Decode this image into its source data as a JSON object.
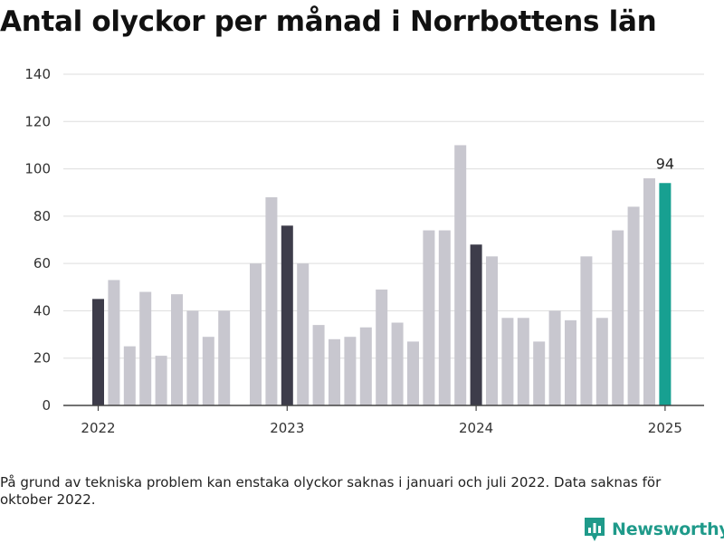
{
  "chart_data": {
    "type": "bar",
    "title": "Antal olyckor per månad i Norrbottens län",
    "ylim": [
      0,
      140
    ],
    "y_ticks": [
      0,
      20,
      40,
      60,
      80,
      100,
      120,
      140
    ],
    "x_ticks": [
      {
        "label": "2022",
        "period": "2022-01"
      },
      {
        "label": "2023",
        "period": "2023-01"
      },
      {
        "label": "2024",
        "period": "2024-01"
      },
      {
        "label": "2025",
        "period": "2025-01"
      }
    ],
    "grid": true,
    "legend": "none",
    "colors": {
      "regular": "#c8c7cf",
      "january": "#3d3c4a",
      "latest": "#17a091",
      "grid": "#dddddd",
      "axis": "#444444"
    },
    "bars": [
      {
        "period": "2022-01",
        "value": 45,
        "highlight": "january"
      },
      {
        "period": "2022-02",
        "value": 53,
        "highlight": "regular"
      },
      {
        "period": "2022-03",
        "value": 25,
        "highlight": "regular"
      },
      {
        "period": "2022-04",
        "value": 48,
        "highlight": "regular"
      },
      {
        "period": "2022-05",
        "value": 21,
        "highlight": "regular"
      },
      {
        "period": "2022-06",
        "value": 47,
        "highlight": "regular"
      },
      {
        "period": "2022-07",
        "value": 40,
        "highlight": "regular"
      },
      {
        "period": "2022-08",
        "value": 29,
        "highlight": "regular"
      },
      {
        "period": "2022-09",
        "value": 40,
        "highlight": "regular"
      },
      {
        "period": "2022-10",
        "value": null,
        "highlight": "regular"
      },
      {
        "period": "2022-11",
        "value": 60,
        "highlight": "regular"
      },
      {
        "period": "2022-12",
        "value": 88,
        "highlight": "regular"
      },
      {
        "period": "2023-01",
        "value": 76,
        "highlight": "january"
      },
      {
        "period": "2023-02",
        "value": 60,
        "highlight": "regular"
      },
      {
        "period": "2023-03",
        "value": 34,
        "highlight": "regular"
      },
      {
        "period": "2023-04",
        "value": 28,
        "highlight": "regular"
      },
      {
        "period": "2023-05",
        "value": 29,
        "highlight": "regular"
      },
      {
        "period": "2023-06",
        "value": 33,
        "highlight": "regular"
      },
      {
        "period": "2023-07",
        "value": 49,
        "highlight": "regular"
      },
      {
        "period": "2023-08",
        "value": 35,
        "highlight": "regular"
      },
      {
        "period": "2023-09",
        "value": 27,
        "highlight": "regular"
      },
      {
        "period": "2023-10",
        "value": 74,
        "highlight": "regular"
      },
      {
        "period": "2023-11",
        "value": 74,
        "highlight": "regular"
      },
      {
        "period": "2023-12",
        "value": 110,
        "highlight": "regular"
      },
      {
        "period": "2024-01",
        "value": 68,
        "highlight": "january"
      },
      {
        "period": "2024-02",
        "value": 63,
        "highlight": "regular"
      },
      {
        "period": "2024-03",
        "value": 37,
        "highlight": "regular"
      },
      {
        "period": "2024-04",
        "value": 37,
        "highlight": "regular"
      },
      {
        "period": "2024-05",
        "value": 27,
        "highlight": "regular"
      },
      {
        "period": "2024-06",
        "value": 40,
        "highlight": "regular"
      },
      {
        "period": "2024-07",
        "value": 36,
        "highlight": "regular"
      },
      {
        "period": "2024-08",
        "value": 63,
        "highlight": "regular"
      },
      {
        "period": "2024-09",
        "value": 37,
        "highlight": "regular"
      },
      {
        "period": "2024-10",
        "value": 74,
        "highlight": "regular"
      },
      {
        "period": "2024-11",
        "value": 84,
        "highlight": "regular"
      },
      {
        "period": "2024-12",
        "value": 96,
        "highlight": "regular"
      },
      {
        "period": "2025-01",
        "value": 94,
        "highlight": "latest",
        "label": "94"
      }
    ]
  },
  "footnote": "På grund av tekniska problem kan enstaka olyckor saknas i januari och juli 2022. Data saknas för oktober 2022.",
  "brand": {
    "name": "Newsworthy",
    "logo_icon": "bar-chart-badge-icon",
    "color": "#1f9a8a"
  }
}
